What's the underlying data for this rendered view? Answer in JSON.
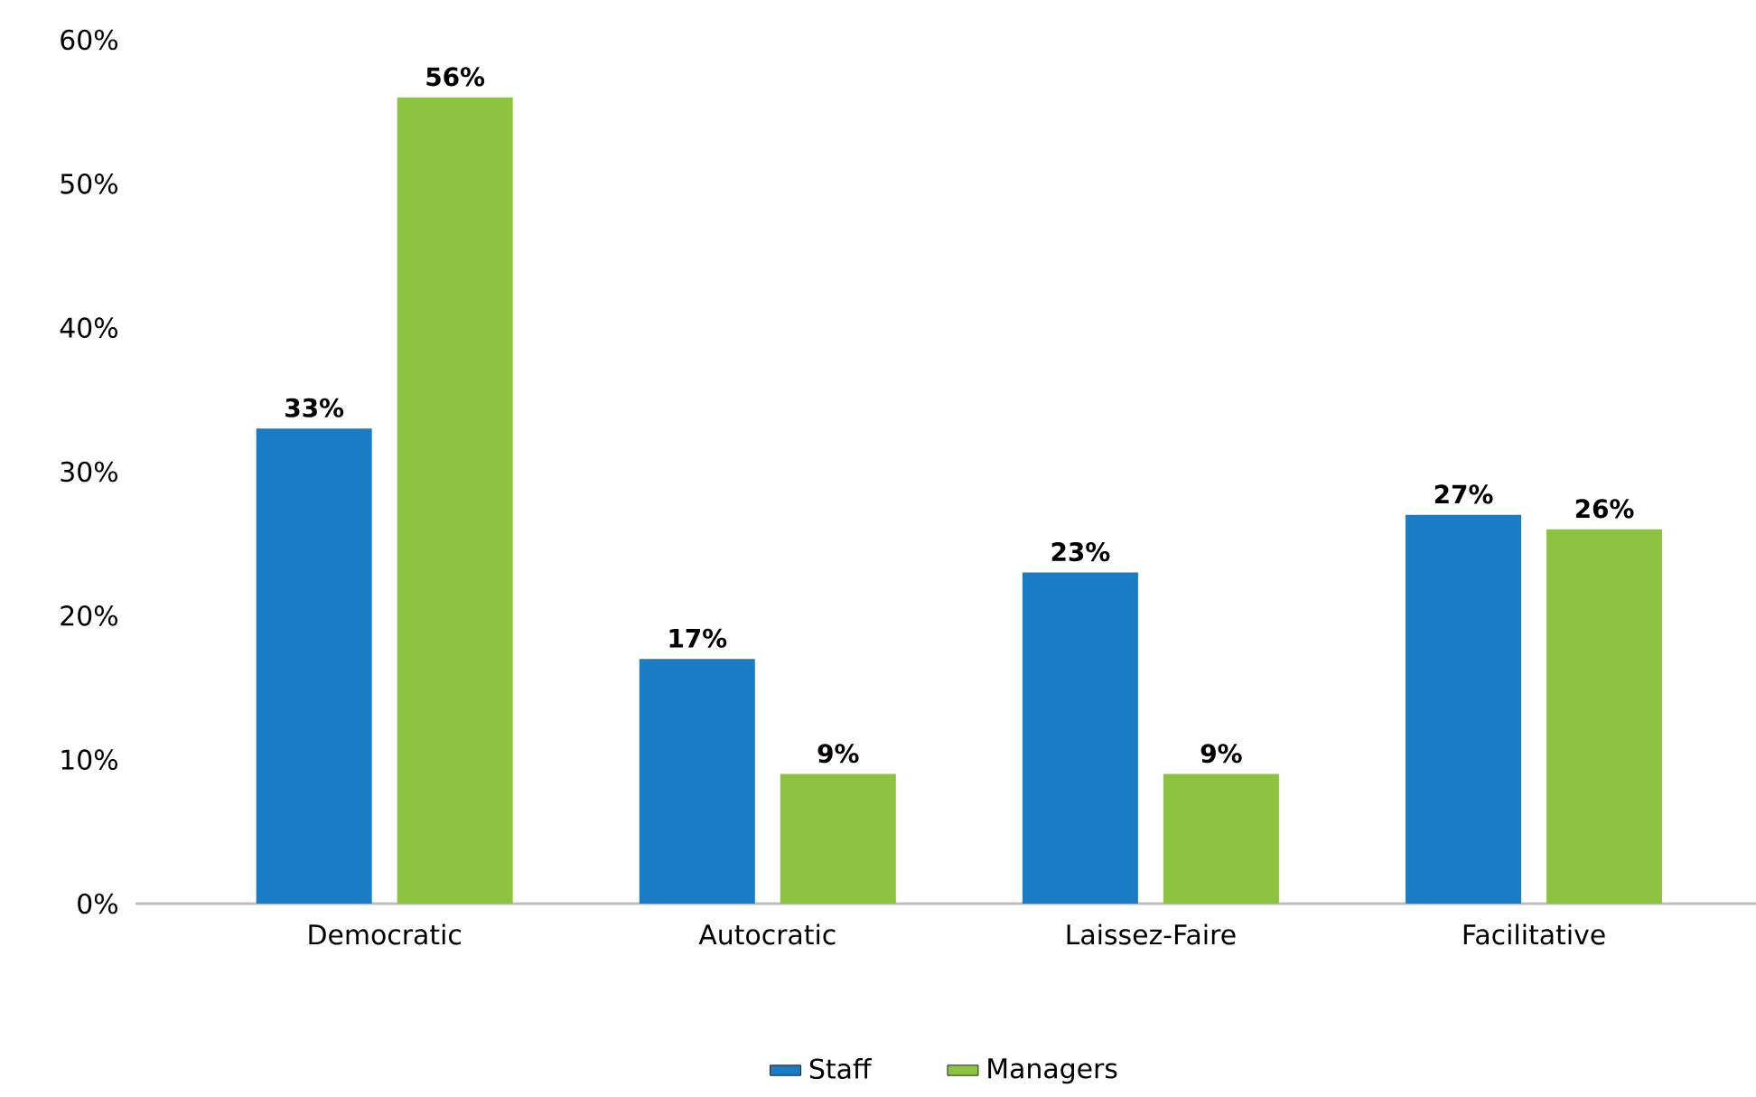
{
  "chart_data": {
    "type": "bar",
    "categories": [
      "Democratic",
      "Autocratic",
      "Laissez-Faire",
      "Facilitative"
    ],
    "series": [
      {
        "name": "Staff",
        "color": "#1a7cc4",
        "values": [
          33,
          17,
          23,
          27
        ],
        "value_labels": [
          "33%",
          "17%",
          "23%",
          "27%"
        ]
      },
      {
        "name": "Managers",
        "color": "#8cc43f",
        "values": [
          56,
          9,
          9,
          26
        ],
        "value_labels": [
          "56%",
          "9%",
          "9%",
          "26%"
        ]
      }
    ],
    "ylim": [
      0,
      60
    ],
    "yticks": [
      {
        "value": 0,
        "label": "0%"
      },
      {
        "value": 10,
        "label": "10%"
      },
      {
        "value": 20,
        "label": "20%"
      },
      {
        "value": 30,
        "label": "30%"
      },
      {
        "value": 40,
        "label": "40%"
      },
      {
        "value": 50,
        "label": "50%"
      },
      {
        "value": 60,
        "label": "60%"
      }
    ],
    "grid": false,
    "legend": "bottom"
  }
}
